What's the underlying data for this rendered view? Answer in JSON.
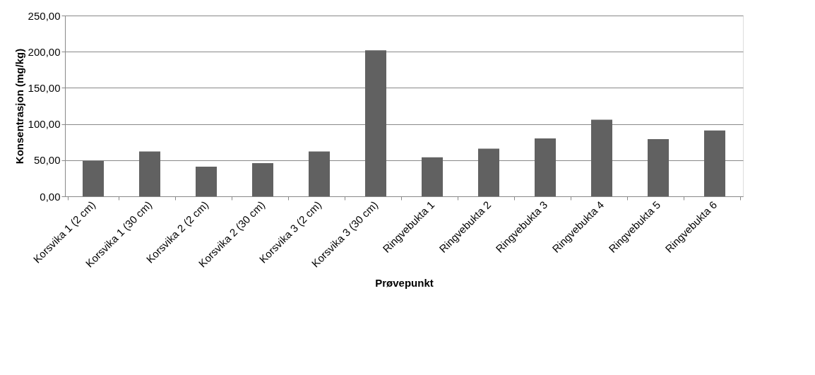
{
  "chart_data": {
    "type": "bar",
    "xlabel": "Prøvepunkt",
    "ylabel": "Konsentrasjon (mg/kg)",
    "categories": [
      "Korsvika 1 (2 cm)",
      "Korsvika 1 (30 cm)",
      "Korsvika 2 (2 cm)",
      "Korsvika 2 (30 cm)",
      "Korsvika 3 (2 cm)",
      "Korsvika 3 (30 cm)",
      "Ringvebukta 1",
      "Ringvebukta 2",
      "Ringvebukta 3",
      "Ringvebukta 4",
      "Ringvebukta 5",
      "Ringvebukta 6"
    ],
    "values": [
      49,
      62,
      41,
      46,
      62,
      202,
      54,
      66,
      80,
      106,
      79,
      91
    ],
    "color": "#616161",
    "ylim": [
      0,
      250
    ],
    "yticks": [
      {
        "value": 0,
        "label": "0,00"
      },
      {
        "value": 50,
        "label": "50,00"
      },
      {
        "value": 100,
        "label": "100,00"
      },
      {
        "value": 150,
        "label": "150,00"
      },
      {
        "value": 200,
        "label": "200,00"
      },
      {
        "value": 250,
        "label": "250,00"
      }
    ],
    "grid": "y"
  }
}
